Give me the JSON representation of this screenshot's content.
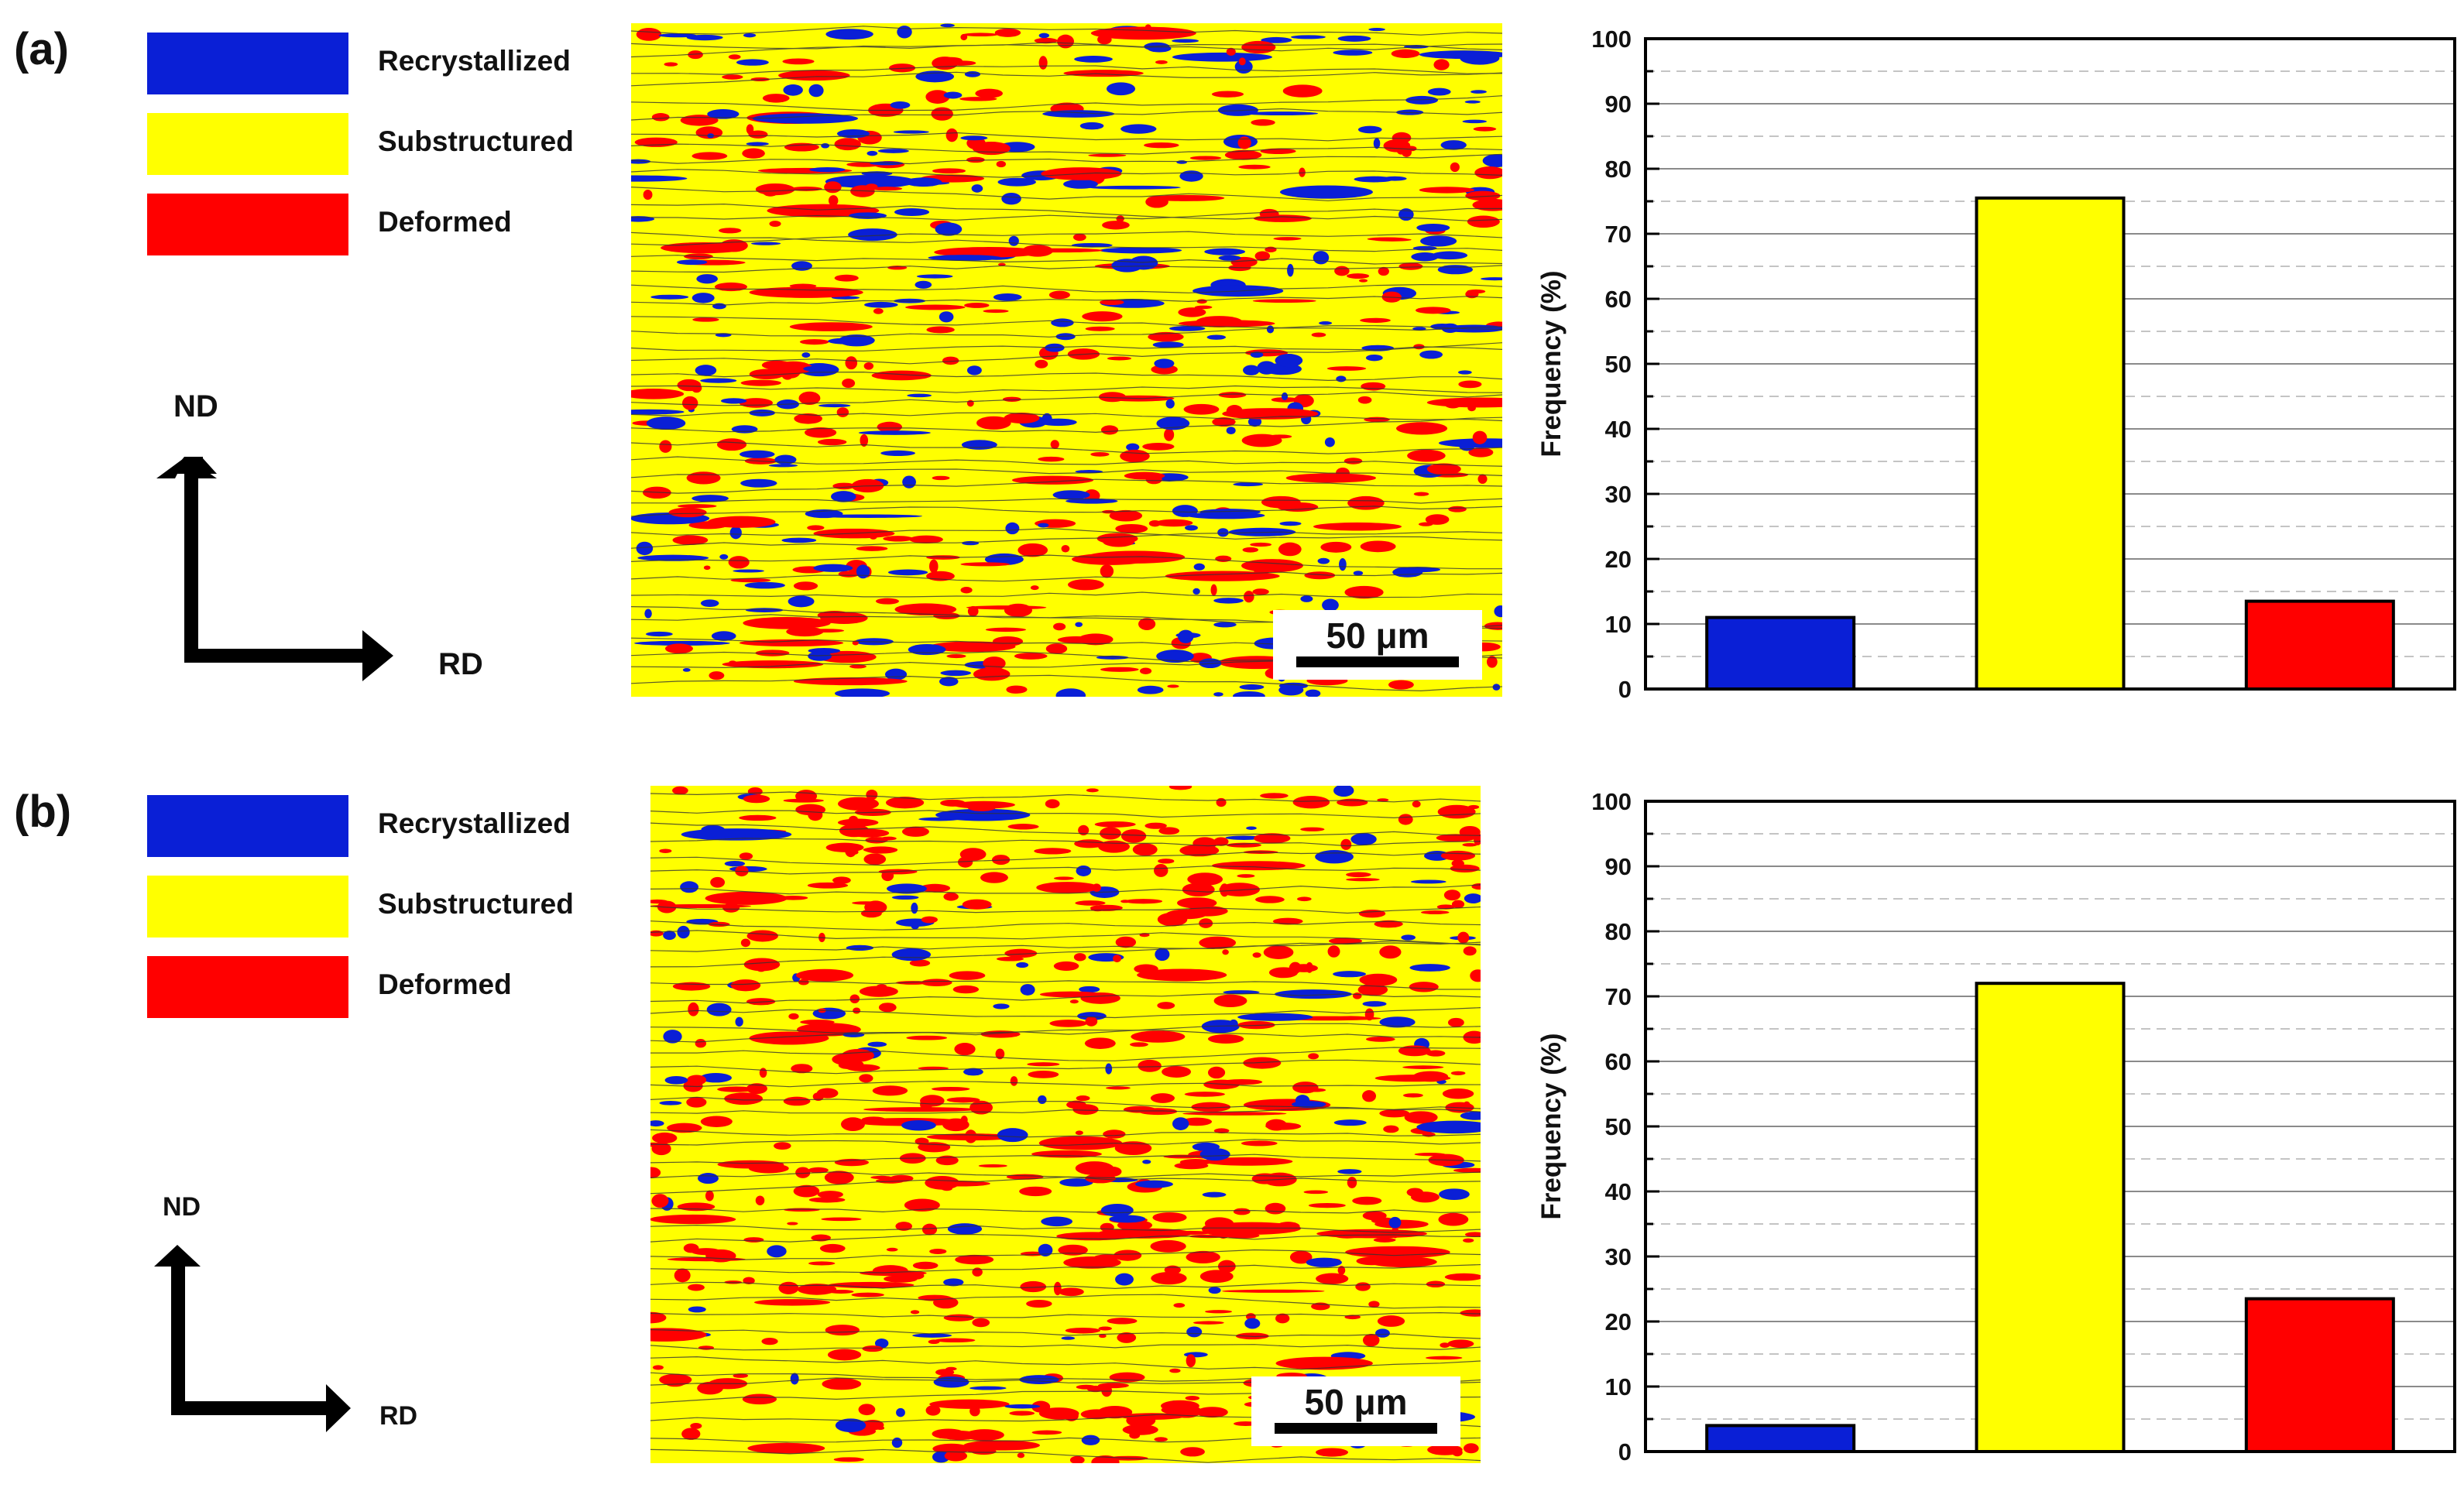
{
  "legend": [
    {
      "label": "Recrystallized",
      "color": "#0a1fd6"
    },
    {
      "label": "Substructured",
      "color": "#ffff00"
    },
    {
      "label": "Deformed",
      "color": "#ff0000"
    }
  ],
  "axes": {
    "nd": "ND",
    "rd": "RD"
  },
  "scale_bar": "50 μm",
  "panels": [
    {
      "label": "(a)"
    },
    {
      "label": "(b)"
    }
  ],
  "chart_data": [
    {
      "type": "bar",
      "categories": [
        "Recrystallized",
        "Substructured",
        "Deformed"
      ],
      "values": [
        11,
        75.5,
        13.5
      ],
      "colors": [
        "#0a1fd6",
        "#ffff00",
        "#ff0000"
      ],
      "title": "",
      "xlabel": "",
      "ylabel": "Frequency (%)",
      "ylim": [
        0,
        100
      ],
      "yticks": [
        0,
        10,
        20,
        30,
        40,
        50,
        60,
        70,
        80,
        90,
        100
      ],
      "grid": "horizontal, solid at labeled ticks and dashed at midpoints"
    },
    {
      "type": "bar",
      "categories": [
        "Recrystallized",
        "Substructured",
        "Deformed"
      ],
      "values": [
        4,
        72,
        23.5
      ],
      "colors": [
        "#0a1fd6",
        "#ffff00",
        "#ff0000"
      ],
      "title": "",
      "xlabel": "",
      "ylabel": "Frequency (%)",
      "ylim": [
        0,
        100
      ],
      "yticks": [
        0,
        10,
        20,
        30,
        40,
        50,
        60,
        70,
        80,
        90,
        100
      ],
      "grid": "horizontal, solid at labeled ticks and dashed at midpoints"
    }
  ]
}
